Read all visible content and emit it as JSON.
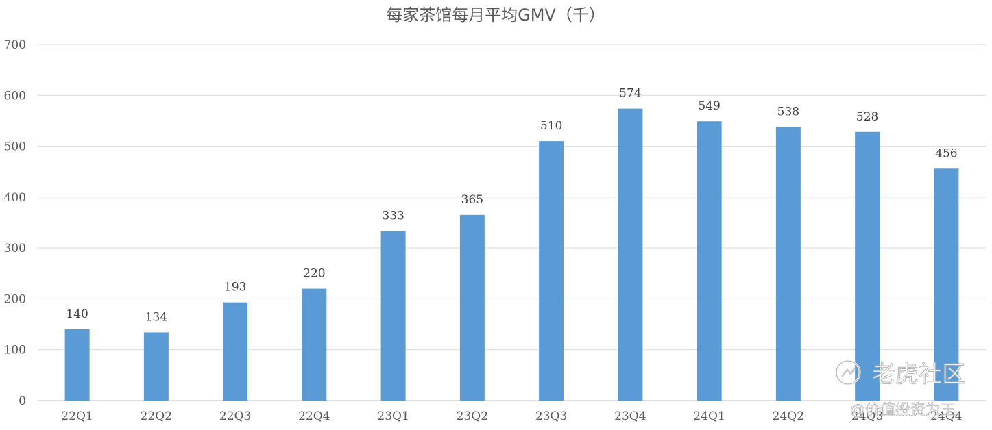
{
  "chart_data": {
    "type": "bar",
    "title": "每家茶馆每月平均GMV（千）",
    "categories": [
      "22Q1",
      "22Q2",
      "22Q3",
      "22Q4",
      "23Q1",
      "23Q2",
      "23Q3",
      "23Q4",
      "24Q1",
      "24Q2",
      "24Q3",
      "24Q4"
    ],
    "values": [
      140,
      134,
      193,
      220,
      333,
      365,
      510,
      574,
      549,
      538,
      528,
      456
    ],
    "ylim": [
      0,
      700
    ],
    "yticks": [
      0,
      100,
      200,
      300,
      400,
      500,
      600,
      700
    ],
    "grid": true,
    "bar_color": "#5b9bd5",
    "show_data_labels": true
  },
  "watermark": {
    "brand": "老虎社区",
    "author": "@价值投资为王"
  }
}
